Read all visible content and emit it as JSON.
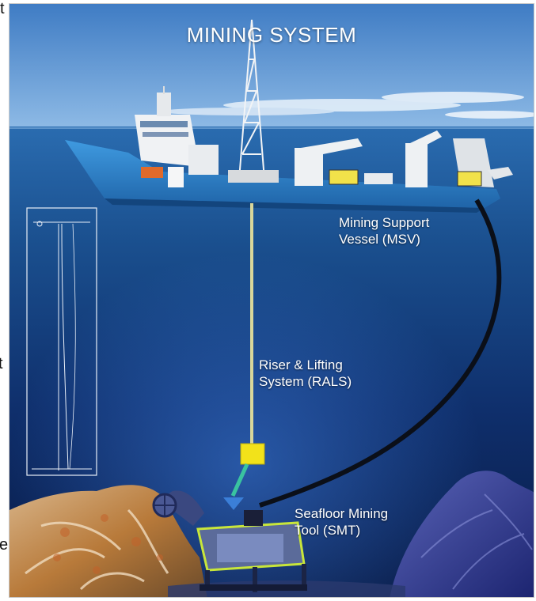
{
  "diagram": {
    "title": "MINING SYSTEM",
    "components": [
      {
        "line1": "Mining Support",
        "line2": "Vessel (MSV)"
      },
      {
        "line1": "Riser & Lifting",
        "line2": "System (RALS)"
      },
      {
        "line1": "Seafloor Mining",
        "line2": "Tool (SMT)"
      }
    ]
  },
  "edge_fragments": [
    "t",
    "e"
  ],
  "colors": {
    "sky": "#4a86c8",
    "sea": "#1e5a9c",
    "deep": "#0a1f4f",
    "hull": "#2f88d0",
    "riser_module": "#f2e21a",
    "tool_frame": "#c8e63a"
  }
}
